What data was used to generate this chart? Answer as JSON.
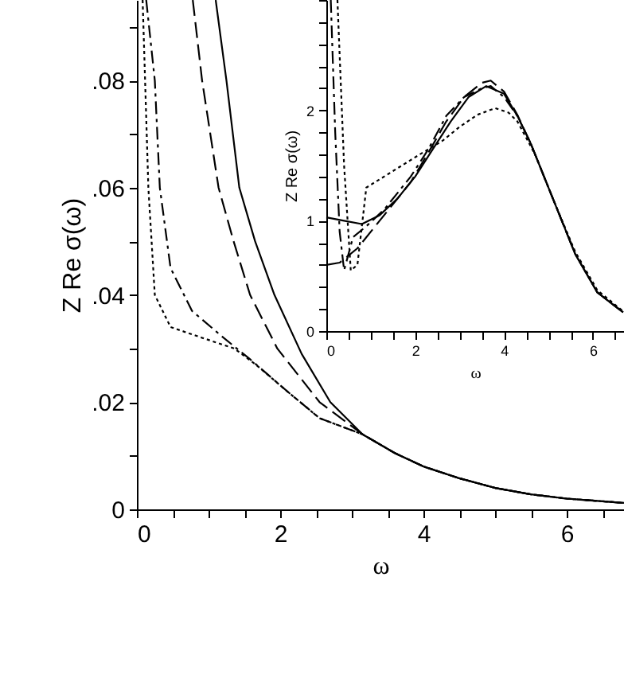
{
  "chart_data": [
    {
      "type": "line",
      "xlabel": "ω",
      "ylabel": "Z Re σ(ω)",
      "xlim": [
        0,
        6.8
      ],
      "ylim": [
        0,
        0.095
      ],
      "grid": false,
      "xticks": [
        0,
        {
          "value": 0.5,
          "label": null
        },
        {
          "value": 1,
          "label": null
        },
        {
          "value": 1.5,
          "label": null
        },
        2,
        {
          "value": 2.5,
          "label": null
        },
        {
          "value": 3,
          "label": null
        },
        {
          "value": 3.5,
          "label": null
        },
        4,
        {
          "value": 4.5,
          "label": null
        },
        {
          "value": 5,
          "label": null
        },
        {
          "value": 5.5,
          "label": null
        },
        6,
        {
          "value": 6.5,
          "label": null
        }
      ],
      "yticks": [
        0,
        {
          "value": 0.01,
          "label": null
        },
        {
          "value": 0.02,
          "label": ".02"
        },
        {
          "value": 0.03,
          "label": null
        },
        {
          "value": 0.04,
          "label": ".04"
        },
        {
          "value": 0.05,
          "label": null
        },
        {
          "value": 0.06,
          "label": ".06"
        },
        {
          "value": 0.07,
          "label": null
        },
        {
          "value": 0.08,
          "label": ".08"
        },
        {
          "value": 0.09,
          "label": null
        }
      ],
      "series": [
        {
          "color": "#000000",
          "line_style": "solid",
          "x": [
            1.1,
            1.25,
            1.43,
            1.65,
            1.92,
            2.3,
            2.7,
            3.15,
            3.6,
            4,
            4.5,
            5,
            5.5,
            6,
            6.8
          ],
          "values": [
            0.095,
            0.08,
            0.06,
            0.05,
            0.04,
            0.029,
            0.02,
            0.014,
            0.0105,
            0.008,
            0.0058,
            0.004,
            0.0028,
            0.002,
            0.0012
          ]
        },
        {
          "color": "#000000",
          "line_style": "dashed",
          "x": [
            0.78,
            0.91,
            1.14,
            1.35,
            1.58,
            1.96,
            2.55,
            3.15,
            3.6,
            4,
            4.5,
            5,
            5.5,
            6,
            6.8
          ],
          "values": [
            0.095,
            0.08,
            0.06,
            0.05,
            0.04,
            0.03,
            0.02,
            0.014,
            0.0105,
            0.008,
            0.0058,
            0.004,
            0.0028,
            0.002,
            0.0012
          ]
        },
        {
          "color": "#000000",
          "line_style": "dashdot",
          "x": [
            0.13,
            0.25,
            0.32,
            0.47,
            0.77,
            1.21,
            1.58,
            2.1,
            2.55,
            3.15,
            3.6,
            4,
            4.5,
            5,
            5.5,
            6,
            6.8
          ],
          "values": [
            0.095,
            0.08,
            0.06,
            0.045,
            0.037,
            0.032,
            0.028,
            0.022,
            0.017,
            0.014,
            0.0105,
            0.008,
            0.0058,
            0.004,
            0.0028,
            0.002,
            0.0012
          ]
        },
        {
          "color": "#000000",
          "line_style": "dotted",
          "x": [
            0.08,
            0.16,
            0.25,
            0.47,
            0.91,
            1.36,
            1.66,
            2.1,
            2.55,
            3.15,
            3.6,
            4,
            4.5,
            5,
            5.5,
            6,
            6.8
          ],
          "values": [
            0.095,
            0.06,
            0.04,
            0.034,
            0.032,
            0.03,
            0.027,
            0.022,
            0.017,
            0.014,
            0.0105,
            0.008,
            0.0058,
            0.004,
            0.0028,
            0.002,
            0.0012
          ]
        }
      ]
    },
    {
      "type": "line",
      "xlabel": "ω",
      "ylabel": "Z Re σ(ω)",
      "xlim": [
        0,
        6.7
      ],
      "ylim": [
        0,
        3
      ],
      "grid": false,
      "xticks": [
        0,
        {
          "value": 0.5,
          "label": null
        },
        {
          "value": 1,
          "label": null
        },
        {
          "value": 1.5,
          "label": null
        },
        2,
        {
          "value": 2.5,
          "label": null
        },
        {
          "value": 3,
          "label": null
        },
        {
          "value": 3.5,
          "label": null
        },
        4,
        {
          "value": 4.5,
          "label": null
        },
        {
          "value": 5,
          "label": null
        },
        {
          "value": 5.5,
          "label": null
        },
        6,
        {
          "value": 6.5,
          "label": null
        }
      ],
      "yticks": [
        0,
        {
          "value": 0.2,
          "label": null
        },
        {
          "value": 0.4,
          "label": null
        },
        {
          "value": 0.6,
          "label": null
        },
        {
          "value": 0.8,
          "label": null
        },
        1,
        {
          "value": 1.2,
          "label": null
        },
        {
          "value": 1.4,
          "label": null
        },
        {
          "value": 1.6,
          "label": null
        },
        {
          "value": 1.8,
          "label": null
        },
        2,
        {
          "value": 2.2,
          "label": null
        },
        {
          "value": 2.4,
          "label": null
        },
        {
          "value": 2.6,
          "label": null
        },
        {
          "value": 2.8,
          "label": null
        },
        {
          "value": 3,
          "label": null
        }
      ],
      "series": [
        {
          "color": "#000000",
          "line_style": "solid",
          "x": [
            0,
            0.4,
            0.8,
            1.2,
            1.6,
            2,
            2.4,
            2.8,
            3.2,
            3.6,
            4,
            4.3,
            4.6,
            5.1,
            5.6,
            6.1,
            6.68
          ],
          "values": [
            1.03,
            1,
            0.97,
            1.05,
            1.2,
            1.4,
            1.65,
            1.9,
            2.12,
            2.22,
            2.15,
            1.95,
            1.7,
            1.2,
            0.7,
            0.35,
            0.17
          ]
        },
        {
          "color": "#000000",
          "line_style": "dashed",
          "x": [
            0,
            0.3,
            0.7,
            1.1,
            1.5,
            1.9,
            2.3,
            2.7,
            3.1,
            3.5,
            3.7,
            4,
            4.3,
            4.6,
            5.1,
            5.6,
            6.1,
            6.68
          ],
          "values": [
            0.6,
            0.62,
            0.75,
            0.95,
            1.15,
            1.35,
            1.62,
            1.9,
            2.12,
            2.25,
            2.27,
            2.17,
            1.96,
            1.7,
            1.2,
            0.7,
            0.35,
            0.17
          ]
        },
        {
          "color": "#000000",
          "line_style": "dashdot",
          "x": [
            0.1,
            0.2,
            0.3,
            0.4,
            0.6,
            0.9,
            1.3,
            1.9,
            2.3,
            2.7,
            3.1,
            3.5,
            3.7,
            4,
            4.3,
            4.6,
            5.1,
            5.6,
            6.1,
            6.68
          ],
          "values": [
            3,
            1.8,
            0.9,
            0.55,
            0.85,
            0.95,
            1.1,
            1.4,
            1.65,
            1.95,
            2.12,
            2.2,
            2.22,
            2.12,
            1.95,
            1.7,
            1.2,
            0.7,
            0.35,
            0.17
          ]
        },
        {
          "color": "#000000",
          "line_style": "dotted",
          "x": [
            0.25,
            0.33,
            0.4,
            0.55,
            0.7,
            0.9,
            1.3,
            1.7,
            2.1,
            2.6,
            3,
            3.4,
            3.8,
            4.1,
            4.3,
            4.7,
            5.1,
            5.6,
            6.1,
            6.68
          ],
          "values": [
            3,
            2.2,
            1.5,
            0.55,
            0.6,
            1.3,
            1.4,
            1.5,
            1.6,
            1.72,
            1.85,
            1.96,
            2.02,
            1.98,
            1.9,
            1.6,
            1.2,
            0.72,
            0.37,
            0.18
          ]
        }
      ]
    }
  ]
}
